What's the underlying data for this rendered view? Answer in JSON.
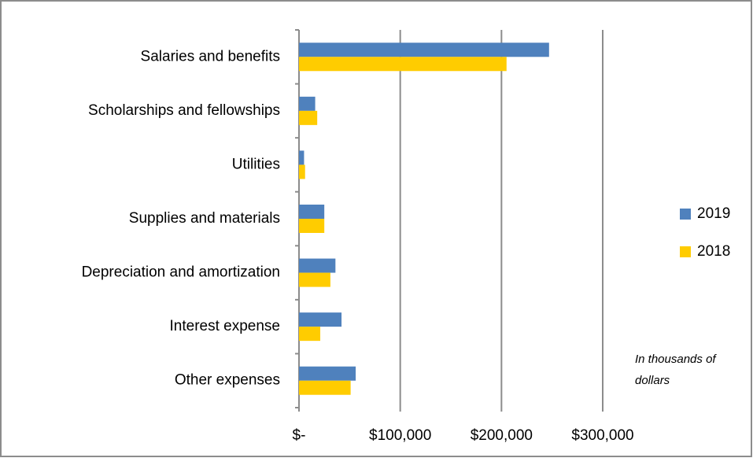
{
  "chart_data": {
    "type": "hbar",
    "categories": [
      "Salaries and benefits",
      "Scholarships and fellowships",
      "Utilities",
      "Supplies and materials",
      "Depreciation and amortization",
      "Interest expense",
      "Other expenses"
    ],
    "series": [
      {
        "name": "2019",
        "color": "#4f81bd",
        "values": [
          247000,
          16000,
          5000,
          25000,
          36000,
          42000,
          56000
        ]
      },
      {
        "name": "2018",
        "color": "#ffcc00",
        "values": [
          205000,
          18000,
          6000,
          25000,
          31000,
          21000,
          51000
        ]
      }
    ],
    "xlim": [
      0,
      300000
    ],
    "xticks": [
      {
        "value": 0,
        "label": "$-"
      },
      {
        "value": 100000,
        "label": "$100,000"
      },
      {
        "value": 200000,
        "label": "$200,000"
      },
      {
        "value": 300000,
        "label": "$300,000"
      }
    ],
    "grid": true,
    "legend": "right",
    "annotation": [
      "In thousands of",
      "dollars"
    ]
  }
}
